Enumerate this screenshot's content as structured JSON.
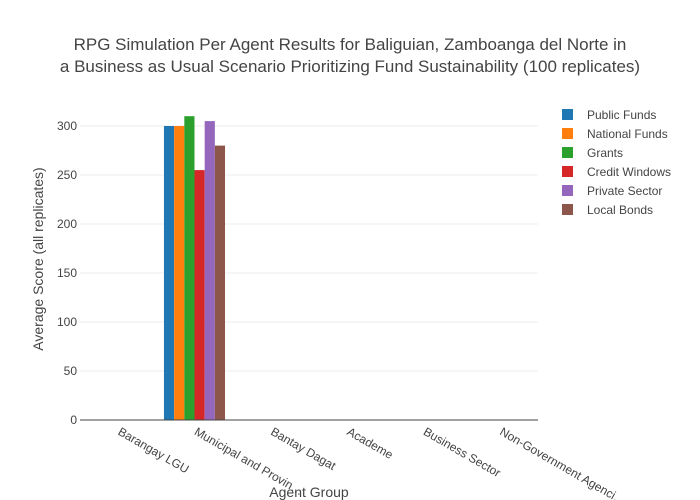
{
  "chart_data": {
    "type": "bar",
    "title_line1": "RPG Simulation Per Agent Results for Baliguian, Zamboanga del Norte in",
    "title_line2": "a Business as Usual Scenario Prioritizing Fund Sustainability (100 replicates)",
    "xlabel": "Agent Group",
    "ylabel": "Average Score (all replicates)",
    "ylim": [
      0,
      320
    ],
    "yticks": [
      0,
      50,
      100,
      150,
      200,
      250,
      300
    ],
    "grid": true,
    "legend_position": "right",
    "categories": [
      "Barangay LGU",
      "Municipal and Provincial LGU",
      "Bantay Dagat",
      "Academe",
      "Business Sector",
      "Non-Government Agencies"
    ],
    "category_labels_shown": [
      "Barangay LGU",
      "Municipal and Provin…",
      "Bantay Dagat",
      "Academe",
      "Business Sector",
      "Non-Government Agenci…"
    ],
    "series": [
      {
        "name": "Public Funds",
        "color": "#1f77b4",
        "values": [
          0,
          300,
          0,
          0,
          0,
          0
        ]
      },
      {
        "name": "National Funds",
        "color": "#ff7f0e",
        "values": [
          0,
          300,
          0,
          0,
          0,
          0
        ]
      },
      {
        "name": "Grants",
        "color": "#2ca02c",
        "values": [
          0,
          310,
          0,
          0,
          0,
          0
        ]
      },
      {
        "name": "Credit Windows",
        "color": "#d62728",
        "values": [
          0,
          255,
          0,
          0,
          0,
          0
        ]
      },
      {
        "name": "Private Sector",
        "color": "#9467bd",
        "values": [
          0,
          305,
          0,
          0,
          0,
          0
        ]
      },
      {
        "name": "Local Bonds",
        "color": "#8c564b",
        "values": [
          0,
          280,
          0,
          0,
          0,
          0
        ]
      }
    ]
  }
}
